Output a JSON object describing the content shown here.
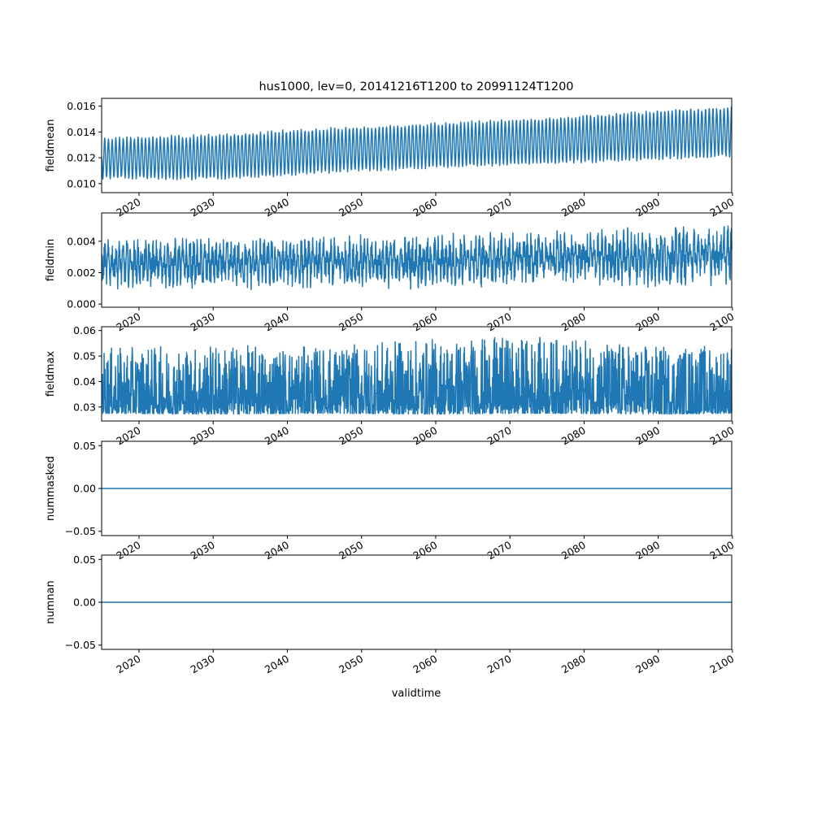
{
  "figure": {
    "title": "hus1000, lev=0, 20141216T1200 to 20991124T1200",
    "xlabel": "validtime",
    "line_color": "#1f77b4"
  },
  "chart_data": [
    {
      "type": "line",
      "ylabel": "fieldmean",
      "xlim": [
        2014.96,
        2099.9
      ],
      "x_ticks": [
        "2020",
        "2030",
        "2040",
        "2050",
        "2060",
        "2070",
        "2080",
        "2090",
        "2100"
      ],
      "ylim": [
        0.0093,
        0.0166
      ],
      "y_ticks": [
        "0.010",
        "0.012",
        "0.014",
        "0.016"
      ],
      "series": [
        {
          "description": "seasonal cycle with upward trend",
          "x": [
            2015,
            2030,
            2045,
            2060,
            2075,
            2090,
            2099.9
          ],
          "min": [
            0.0102,
            0.0101,
            0.0106,
            0.011,
            0.0113,
            0.0116,
            0.0118
          ],
          "max": [
            0.0137,
            0.014,
            0.0145,
            0.0149,
            0.0153,
            0.0159,
            0.0162
          ]
        }
      ]
    },
    {
      "type": "line",
      "ylabel": "fieldmin",
      "xlim": [
        2014.96,
        2099.9
      ],
      "x_ticks": [
        "2020",
        "2030",
        "2040",
        "2050",
        "2060",
        "2070",
        "2080",
        "2090",
        "2100"
      ],
      "ylim": [
        -0.0002,
        0.0058
      ],
      "y_ticks": [
        "0.000",
        "0.002",
        "0.004"
      ],
      "series": [
        {
          "description": "noisy seasonal cycle",
          "x": [
            2015,
            2030,
            2045,
            2060,
            2075,
            2090,
            2099.9
          ],
          "min": [
            0.001,
            0.0008,
            0.001,
            0.0008,
            0.0012,
            0.001,
            0.0012
          ],
          "max": [
            0.0042,
            0.0043,
            0.0044,
            0.0046,
            0.0047,
            0.005,
            0.0052
          ]
        }
      ]
    },
    {
      "type": "line",
      "ylabel": "fieldmax",
      "xlim": [
        2014.96,
        2099.9
      ],
      "x_ticks": [
        "2020",
        "2030",
        "2040",
        "2050",
        "2060",
        "2070",
        "2080",
        "2090",
        "2100"
      ],
      "ylim": [
        0.0245,
        0.0615
      ],
      "y_ticks": [
        "0.03",
        "0.04",
        "0.05",
        "0.06"
      ],
      "series": [
        {
          "description": "dense noisy signal",
          "x": [
            2015,
            2030,
            2045,
            2060,
            2075,
            2090,
            2099.9
          ],
          "min": [
            0.0275,
            0.0272,
            0.0275,
            0.0272,
            0.0275,
            0.0272,
            0.0275
          ],
          "max": [
            0.053,
            0.0545,
            0.0535,
            0.057,
            0.0575,
            0.054,
            0.0545
          ]
        }
      ]
    },
    {
      "type": "line",
      "ylabel": "nummasked",
      "xlim": [
        2014.96,
        2099.9
      ],
      "x_ticks": [
        "2020",
        "2030",
        "2040",
        "2050",
        "2060",
        "2070",
        "2080",
        "2090",
        "2100"
      ],
      "ylim": [
        -0.055,
        0.055
      ],
      "y_ticks": [
        "−0.05",
        "0.00",
        "0.05"
      ],
      "series": [
        {
          "x": [
            2014.96,
            2099.9
          ],
          "y": [
            0.0,
            0.0
          ]
        }
      ]
    },
    {
      "type": "line",
      "ylabel": "numnan",
      "xlim": [
        2014.96,
        2099.9
      ],
      "x_ticks": [
        "2020",
        "2030",
        "2040",
        "2050",
        "2060",
        "2070",
        "2080",
        "2090",
        "2100"
      ],
      "ylim": [
        -0.055,
        0.055
      ],
      "y_ticks": [
        "−0.05",
        "0.00",
        "0.05"
      ],
      "series": [
        {
          "x": [
            2014.96,
            2099.9
          ],
          "y": [
            0.0,
            0.0
          ]
        }
      ]
    }
  ]
}
